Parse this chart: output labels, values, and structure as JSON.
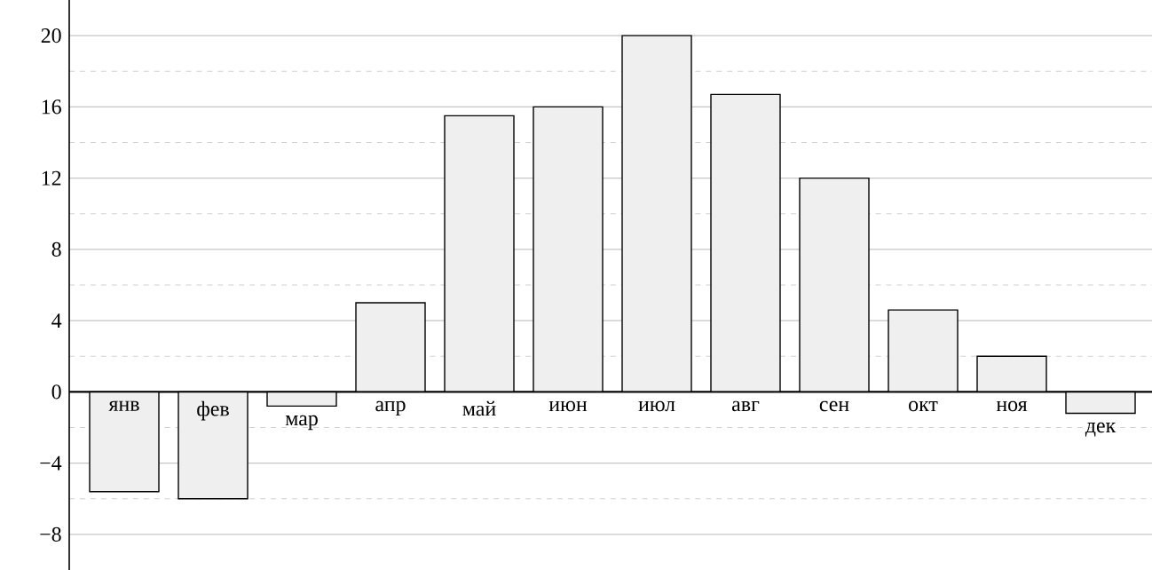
{
  "chart_data": {
    "type": "bar",
    "categories": [
      "янв",
      "фев",
      "мар",
      "апр",
      "май",
      "июн",
      "июл",
      "авг",
      "сен",
      "окт",
      "ноя",
      "дек"
    ],
    "values": [
      -5.6,
      -6,
      -0.8,
      5,
      15.5,
      16,
      20,
      16.7,
      12,
      4.6,
      2,
      -1.2
    ],
    "color": "#efefef",
    "ylim": [
      -10,
      22
    ],
    "yticks": [
      {
        "value": -8,
        "label": "−8"
      },
      {
        "value": -4,
        "label": "−4"
      },
      0,
      4,
      8,
      12,
      16,
      20
    ],
    "grid": "y"
  }
}
